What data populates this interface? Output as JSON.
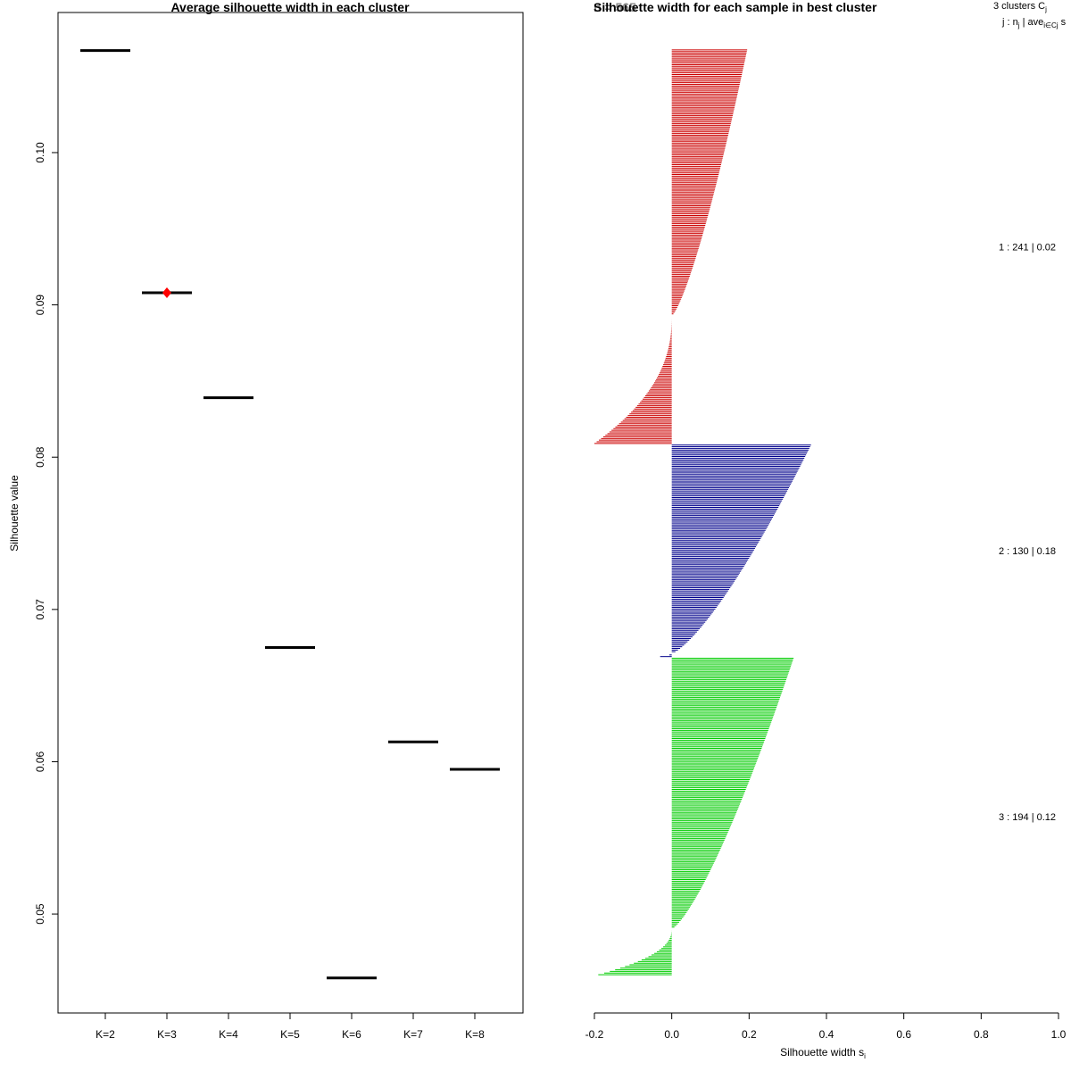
{
  "chart_data": [
    {
      "type": "line",
      "title": "Average silhouette width in each cluster",
      "xlabel": "",
      "ylabel": "Silhouette value",
      "categories": [
        "K=2",
        "K=3",
        "K=4",
        "K=5",
        "K=6",
        "K=7",
        "K=8"
      ],
      "values": [
        0.1067,
        0.0908,
        0.0839,
        0.0675,
        0.0458,
        0.0613,
        0.0595
      ],
      "best": {
        "category": "K=3",
        "value": 0.0908,
        "marker": "diamond",
        "color": "#ff0000"
      },
      "yticks": [
        "0.05",
        "0.06",
        "0.07",
        "0.08",
        "0.09",
        "0.10"
      ],
      "ylim": [
        0.0435,
        0.1092
      ]
    },
    {
      "type": "bar",
      "orientation": "horizontal",
      "title": "Silhouette width for each sample in best cluster",
      "overlay_title": "n = 565",
      "xlabel": "Silhouette width s",
      "xlabel_subscript": "i",
      "xlim": [
        -0.2,
        1.0
      ],
      "xticks": [
        "-0.2",
        "0.0",
        "0.2",
        "0.4",
        "0.6",
        "0.8",
        "1.0"
      ],
      "legend_header_line1": "3  clusters  C",
      "legend_header_line1_sub": "j",
      "legend_header_line2": "j :  n",
      "legend_header_line2_mid": " | ave",
      "legend_header_line2_sub": "i∈Cj",
      "legend_header_line2_tail": "  s",
      "clusters": [
        {
          "id": 1,
          "n": 241,
          "avg_label": "1 :  241  |  0.02",
          "color": "#cc0000",
          "max_width": 0.195,
          "positive_count": 163,
          "min_width": -0.2
        },
        {
          "id": 2,
          "n": 130,
          "avg_label": "2 :  130  |  0.18",
          "color": "#00008b",
          "max_width": 0.36,
          "positive_count": 128,
          "min_width": -0.03
        },
        {
          "id": 3,
          "n": 194,
          "avg_label": "3 :  194  |  0.12",
          "color": "#00cc00",
          "max_width": 0.315,
          "positive_count": 166,
          "min_width": -0.19
        }
      ]
    }
  ]
}
